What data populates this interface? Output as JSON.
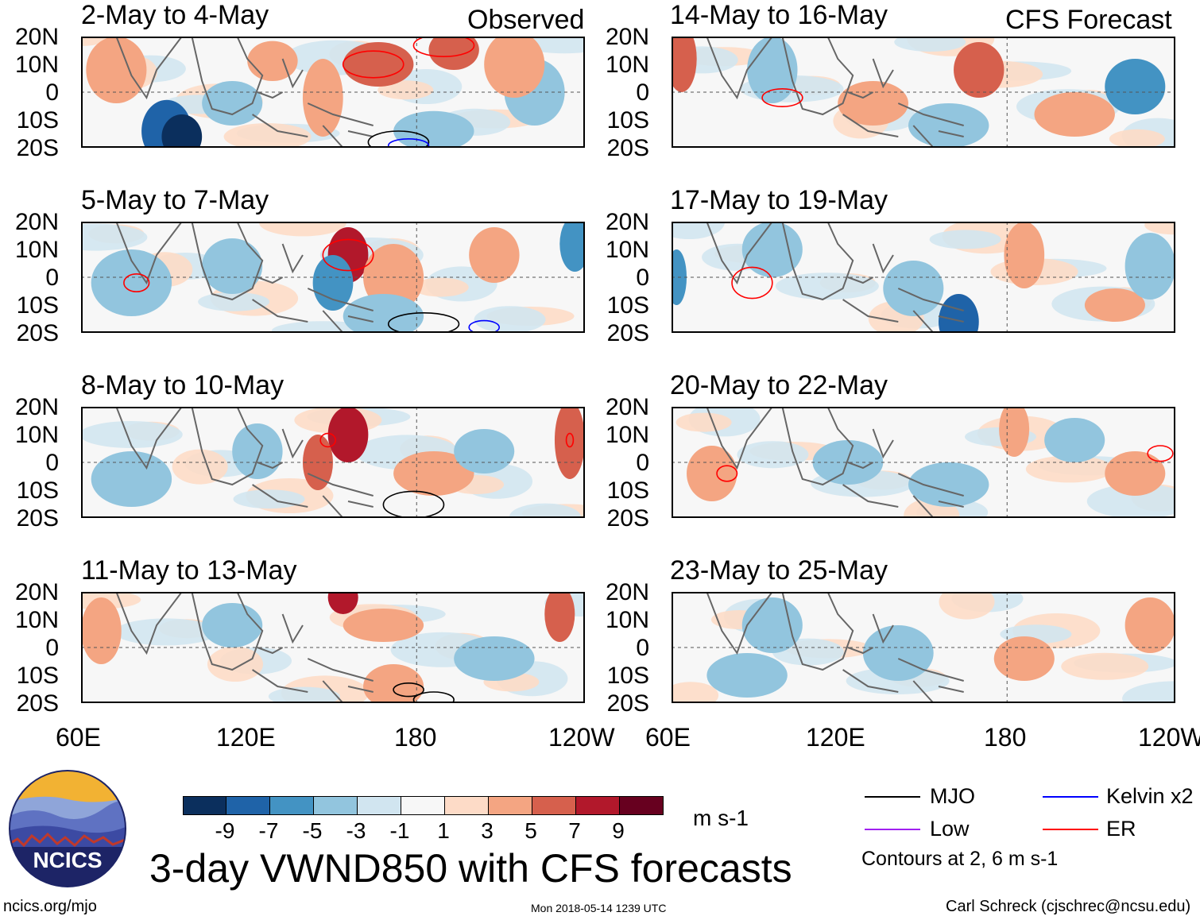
{
  "titles": {
    "observed": "Observed",
    "forecast": "CFS Forecast",
    "main": "3-day VWND850 with CFS forecasts"
  },
  "panels_left": [
    {
      "label": "2-May to 4-May"
    },
    {
      "label": "5-May to 7-May"
    },
    {
      "label": "8-May to 10-May"
    },
    {
      "label": "11-May to 13-May"
    }
  ],
  "panels_right": [
    {
      "label": "14-May to 16-May"
    },
    {
      "label": "17-May to 19-May"
    },
    {
      "label": "20-May to 22-May"
    },
    {
      "label": "23-May to 25-May"
    }
  ],
  "axes": {
    "lat_labels": [
      "20N",
      "10N",
      "0",
      "10S",
      "20S"
    ],
    "lon_labels": [
      "60E",
      "120E",
      "180",
      "120W"
    ]
  },
  "colorbar": {
    "ticks": [
      "-9",
      "-7",
      "-5",
      "-3",
      "-1",
      "1",
      "3",
      "5",
      "7",
      "9"
    ],
    "colors": [
      "#0b2f5d",
      "#1f63a8",
      "#4393c3",
      "#92c5de",
      "#d1e5f0",
      "#f7f7f7",
      "#fddbc7",
      "#f4a582",
      "#d6604d",
      "#b2182b",
      "#67001f"
    ],
    "units": "m s-1"
  },
  "legend": {
    "mjo": "MJO",
    "kelvin": "Kelvin x2",
    "low": "Low",
    "er": "ER",
    "contours_note": "Contours at 2, 6 m s-1",
    "colors": {
      "mjo": "#000000",
      "kelvin": "#0000ff",
      "low": "#a020f0",
      "er": "#ff0000"
    }
  },
  "footer": {
    "website": "ncics.org/mjo",
    "timestamp": "Mon 2018-05-14 1239 UTC",
    "author": "Carl Schreck (cjschrec@ncsu.edu)"
  },
  "logo": {
    "text": "NCICS"
  }
}
